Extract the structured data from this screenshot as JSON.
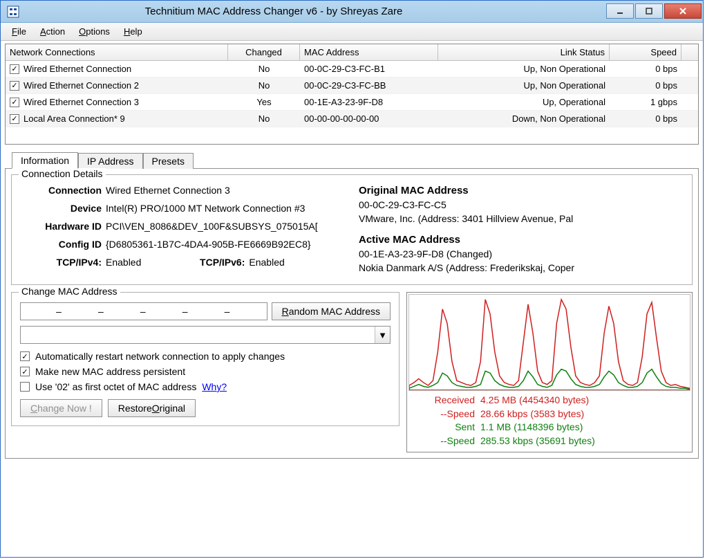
{
  "window": {
    "title": "Technitium MAC Address Changer v6 - by Shreyas Zare"
  },
  "menubar": {
    "file": "File",
    "action": "Action",
    "options": "Options",
    "help": "Help"
  },
  "table": {
    "headers": {
      "name": "Network Connections",
      "changed": "Changed",
      "mac": "MAC Address",
      "link": "Link Status",
      "speed": "Speed"
    },
    "rows": [
      {
        "checked": true,
        "name": "Wired Ethernet Connection",
        "changed": "No",
        "mac": "00-0C-29-C3-FC-B1",
        "link": "Up, Non Operational",
        "speed": "0 bps"
      },
      {
        "checked": true,
        "name": "Wired Ethernet Connection 2",
        "changed": "No",
        "mac": "00-0C-29-C3-FC-BB",
        "link": "Up, Non Operational",
        "speed": "0 bps"
      },
      {
        "checked": true,
        "name": "Wired Ethernet Connection 3",
        "changed": "Yes",
        "mac": "00-1E-A3-23-9F-D8",
        "link": "Up, Operational",
        "speed": "1 gbps"
      },
      {
        "checked": true,
        "name": "Local Area Connection* 9",
        "changed": "No",
        "mac": "00-00-00-00-00-00",
        "link": "Down, Non Operational",
        "speed": "0 bps"
      }
    ]
  },
  "tabs": {
    "information": "Information",
    "ip_address": "IP Address",
    "presets": "Presets"
  },
  "details": {
    "legend": "Connection Details",
    "labels": {
      "connection": "Connection",
      "device": "Device",
      "hardware_id": "Hardware ID",
      "config_id": "Config ID",
      "tcpipv4": "TCP/IPv4:",
      "tcpipv6": "TCP/IPv6:"
    },
    "values": {
      "connection": "Wired Ethernet Connection 3",
      "device": "Intel(R) PRO/1000 MT Network Connection #3",
      "hardware_id": "PCI\\VEN_8086&DEV_100F&SUBSYS_075015A[",
      "config_id": "{D6805361-1B7C-4DA4-905B-FE6669B92EC8}",
      "tcpipv4": "Enabled",
      "tcpipv6": "Enabled"
    },
    "right": {
      "original_heading": "Original MAC Address",
      "original_mac": "00-0C-29-C3-FC-C5",
      "original_vendor": "VMware, Inc. (Address: 3401 Hillview Avenue, Pal",
      "active_heading": "Active MAC Address",
      "active_mac": "00-1E-A3-23-9F-D8 (Changed)",
      "active_vendor": "Nokia Danmark A/S (Address: Frederikskaj, Coper"
    }
  },
  "change_mac": {
    "legend": "Change MAC Address",
    "mac_placeholder": "–      –      –      –      –",
    "random_btn": "Random MAC Address",
    "opt_restart": "Automatically restart network connection to apply changes",
    "opt_persistent": "Make new MAC address persistent",
    "opt_use02": "Use '02' as first octet of MAC address",
    "why_link": "Why?",
    "change_btn": "Change Now !",
    "restore_btn": "Restore Original"
  },
  "graph": {
    "colors": {
      "received": "#d02020",
      "sent": "#108010",
      "grid": "#e8e8e8",
      "bg": "#ffffff"
    },
    "received_series": [
      5,
      8,
      12,
      8,
      5,
      10,
      40,
      85,
      70,
      30,
      10,
      8,
      6,
      5,
      8,
      30,
      95,
      80,
      40,
      15,
      8,
      6,
      5,
      10,
      50,
      90,
      60,
      20,
      8,
      6,
      10,
      70,
      95,
      85,
      45,
      15,
      8,
      6,
      5,
      8,
      15,
      60,
      88,
      70,
      30,
      10,
      6,
      5,
      8,
      35,
      80,
      92,
      55,
      20,
      8,
      5,
      6,
      4,
      3,
      2
    ],
    "sent_series": [
      2,
      4,
      6,
      4,
      3,
      5,
      8,
      18,
      15,
      8,
      5,
      4,
      3,
      3,
      4,
      6,
      20,
      18,
      10,
      6,
      4,
      3,
      3,
      4,
      10,
      20,
      14,
      6,
      4,
      3,
      5,
      16,
      22,
      20,
      12,
      6,
      4,
      3,
      3,
      4,
      6,
      14,
      20,
      16,
      8,
      5,
      3,
      3,
      4,
      8,
      18,
      22,
      14,
      7,
      4,
      3,
      3,
      2,
      2,
      1
    ],
    "stats": {
      "received_label": "Received",
      "received_value": "4.25 MB (4454340 bytes)",
      "received_speed_label": "--Speed",
      "received_speed_value": "28.66 kbps (3583 bytes)",
      "sent_label": "Sent",
      "sent_value": "1.1 MB (1148396 bytes)",
      "sent_speed_label": "--Speed",
      "sent_speed_value": "285.53 kbps (35691 bytes)"
    }
  }
}
